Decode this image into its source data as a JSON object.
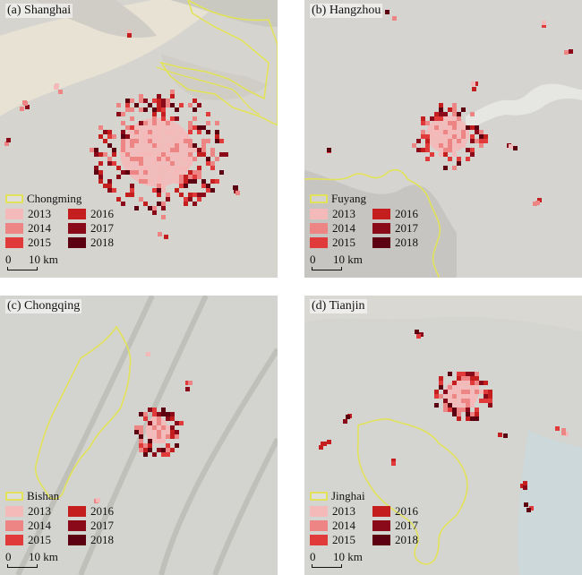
{
  "legend_years": [
    {
      "label": "2013",
      "color": "#f4b9b9"
    },
    {
      "label": "2014",
      "color": "#ed8585"
    },
    {
      "label": "2015",
      "color": "#e03a3a"
    },
    {
      "label": "2016",
      "color": "#c41e1e"
    },
    {
      "label": "2017",
      "color": "#8b0a1a"
    },
    {
      "label": "2018",
      "color": "#5c0011"
    }
  ],
  "colors": {
    "boundary": "#e2e25a",
    "background": "#d7d5d0",
    "water": "#e9e3d6",
    "sea": "#cdd9dc"
  },
  "scale": {
    "zero": "0",
    "label": "10 km"
  },
  "panels": [
    {
      "id": "shanghai",
      "label": "(a) Shanghai",
      "boundary_name": "Chongming"
    },
    {
      "id": "hangzhou",
      "label": "(b) Hangzhou",
      "boundary_name": "Fuyang"
    },
    {
      "id": "chongqing",
      "label": "(c) Chongqing",
      "boundary_name": "Bishan"
    },
    {
      "id": "tianjin",
      "label": "(d) Tianjin",
      "boundary_name": "Jinghai"
    }
  ]
}
